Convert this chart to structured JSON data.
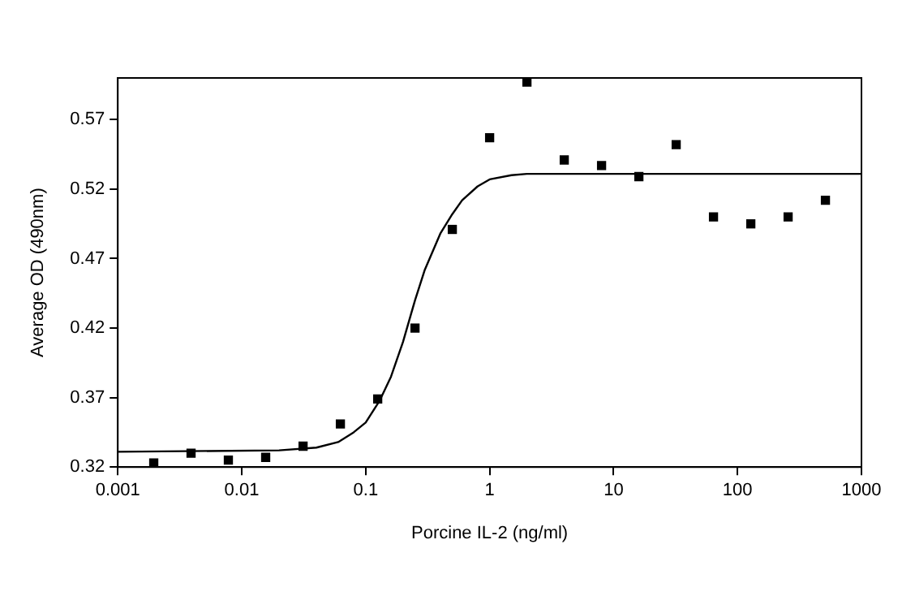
{
  "chart_data": {
    "type": "scatter",
    "xlabel": "Porcine IL-2 (ng/ml)",
    "ylabel": "Average OD (490nm)",
    "log": "x",
    "xlim": [
      0.001,
      1000
    ],
    "xticks": [
      0.001,
      0.01,
      0.1,
      1,
      10,
      100,
      1000
    ],
    "ylim": [
      0.32,
      0.6
    ],
    "yticks": [
      0.32,
      0.37,
      0.42,
      0.47,
      0.52,
      0.57
    ],
    "grid": false,
    "legend": false,
    "series": [
      {
        "type": "scatter",
        "color": "#000000",
        "marker": "square",
        "x": [
          0.00195,
          0.0039,
          0.0078,
          0.0156,
          0.03125,
          0.0625,
          0.125,
          0.25,
          0.5,
          1,
          2,
          4,
          8,
          16,
          32,
          64,
          128,
          256,
          512
        ],
        "values": [
          0.323,
          0.33,
          0.325,
          0.327,
          0.335,
          0.351,
          0.369,
          0.42,
          0.491,
          0.557,
          0.597,
          0.541,
          0.537,
          0.529,
          0.552,
          0.5,
          0.495,
          0.5,
          0.512
        ]
      },
      {
        "type": "line",
        "color": "#000000",
        "marker": "none",
        "line_style": "solid",
        "x": [
          0.001,
          0.02,
          0.04,
          0.06,
          0.08,
          0.1,
          0.13,
          0.16,
          0.2,
          0.25,
          0.3,
          0.4,
          0.5,
          0.6,
          0.8,
          1,
          1.5,
          2,
          1000
        ],
        "values": [
          0.331,
          0.332,
          0.334,
          0.338,
          0.345,
          0.352,
          0.368,
          0.385,
          0.41,
          0.44,
          0.462,
          0.488,
          0.502,
          0.512,
          0.522,
          0.527,
          0.53,
          0.531,
          0.531
        ]
      }
    ]
  }
}
